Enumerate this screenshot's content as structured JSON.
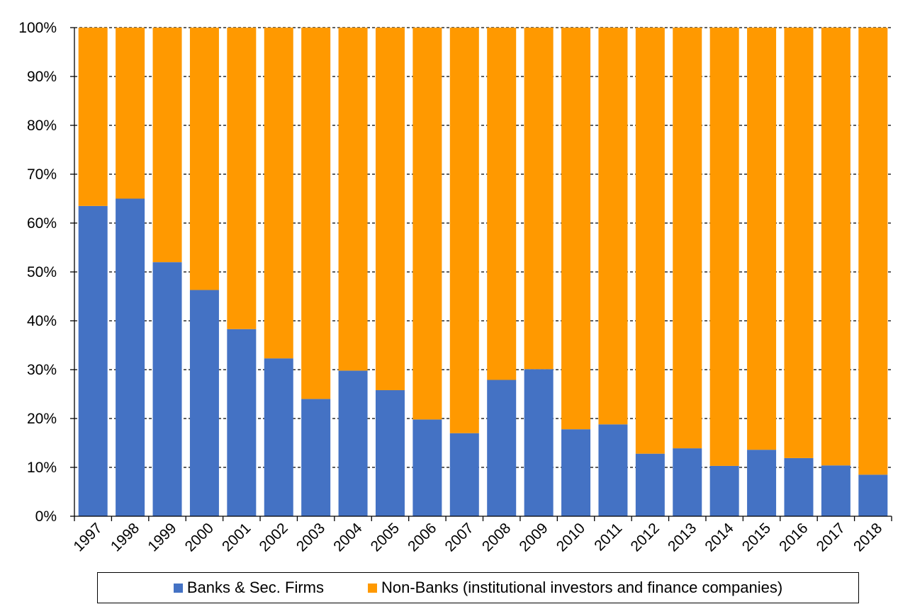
{
  "chart_data": {
    "type": "bar",
    "stacked": true,
    "categories": [
      "1997",
      "1998",
      "1999",
      "2000",
      "2001",
      "2002",
      "2003",
      "2004",
      "2005",
      "2006",
      "2007",
      "2008",
      "2009",
      "2010",
      "2011",
      "2012",
      "2013",
      "2014",
      "2015",
      "2016",
      "2017",
      "2018"
    ],
    "series": [
      {
        "name": "Banks & Sec. Firms",
        "color": "#4472c4",
        "values": [
          63.5,
          65.0,
          52.0,
          46.3,
          38.3,
          32.3,
          24.0,
          29.8,
          25.8,
          19.8,
          17.0,
          27.9,
          30.1,
          17.8,
          18.8,
          12.8,
          13.9,
          10.3,
          13.6,
          11.9,
          10.4,
          8.5
        ]
      },
      {
        "name": "Non-Banks (institutional investors and finance companies)",
        "color": "#ff9900",
        "values": [
          36.5,
          35.0,
          48.0,
          53.7,
          61.7,
          67.7,
          76.0,
          70.2,
          74.2,
          80.2,
          83.0,
          72.1,
          69.9,
          82.2,
          81.2,
          87.2,
          86.1,
          89.7,
          86.4,
          88.1,
          89.6,
          91.5
        ]
      }
    ],
    "ylim": [
      0,
      100
    ],
    "yticks": [
      "0%",
      "10%",
      "20%",
      "30%",
      "40%",
      "50%",
      "60%",
      "70%",
      "80%",
      "90%",
      "100%"
    ],
    "grid": "horizontal dashed",
    "legend_position": "bottom",
    "title": "",
    "xlabel": "",
    "ylabel": ""
  },
  "legend": {
    "items": [
      {
        "label": "Banks & Sec. Firms",
        "color": "#4472c4"
      },
      {
        "label": "Non-Banks (institutional investors and finance companies)",
        "color": "#ff9900"
      }
    ]
  }
}
